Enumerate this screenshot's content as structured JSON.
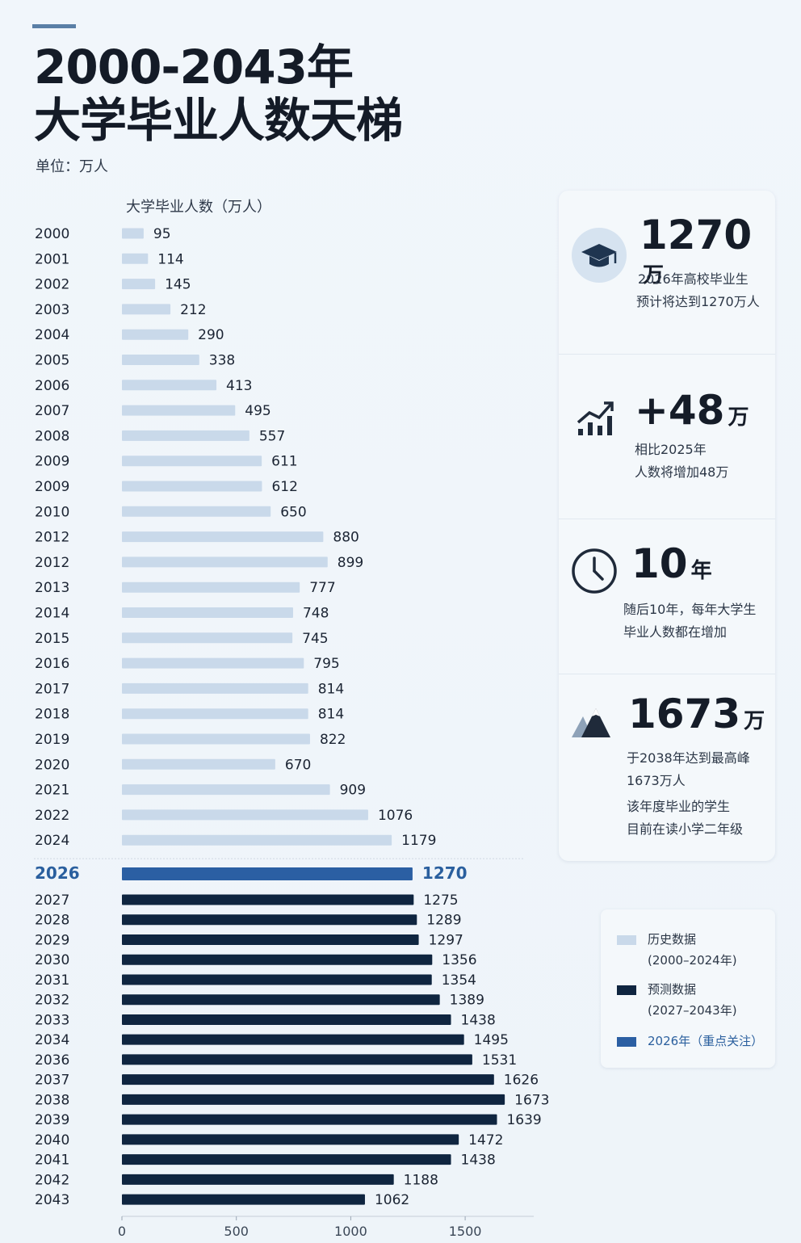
{
  "header": {
    "title_line1": "2000-2043年",
    "title_line2": "大学毕业人数天梯",
    "unit": "单位：万人"
  },
  "chart_data": {
    "type": "bar",
    "orientation": "horizontal",
    "ylabel": "大学毕业人数（万人）",
    "xlim": [
      0,
      1800
    ],
    "xticks": [
      0,
      500,
      1000,
      1500
    ],
    "categories": [
      "2000",
      "2001",
      "2002",
      "2003",
      "2004",
      "2005",
      "2006",
      "2007",
      "2008",
      "2009",
      "2009",
      "2010",
      "2012",
      "2012",
      "2013",
      "2014",
      "2015",
      "2016",
      "2017",
      "2018",
      "2019",
      "2020",
      "2021",
      "2022",
      "2024",
      "2026",
      "2027",
      "2028",
      "2029",
      "2030",
      "2031",
      "2032",
      "2033",
      "2034",
      "2036",
      "2037",
      "2038",
      "2039",
      "2040",
      "2041",
      "2042",
      "2043"
    ],
    "values": [
      95,
      114,
      145,
      212,
      290,
      338,
      413,
      495,
      557,
      611,
      612,
      650,
      880,
      899,
      777,
      748,
      745,
      795,
      814,
      814,
      822,
      670,
      909,
      1076,
      1179,
      1270,
      1275,
      1289,
      1297,
      1356,
      1354,
      1389,
      1438,
      1495,
      1531,
      1626,
      1673,
      1639,
      1472,
      1438,
      1188,
      1062
    ],
    "groups": [
      "history",
      "history",
      "history",
      "history",
      "history",
      "history",
      "history",
      "history",
      "history",
      "history",
      "history",
      "history",
      "history",
      "history",
      "history",
      "history",
      "history",
      "history",
      "history",
      "history",
      "history",
      "history",
      "history",
      "history",
      "history",
      "focus",
      "forecast",
      "forecast",
      "forecast",
      "forecast",
      "forecast",
      "forecast",
      "forecast",
      "forecast",
      "forecast",
      "forecast",
      "forecast",
      "forecast",
      "forecast",
      "forecast",
      "forecast",
      "forecast"
    ],
    "colors": {
      "history": "#c9d9ea",
      "focus": "#2b5fa3",
      "forecast": "#0f2540",
      "focus_text": "#2a5f9e"
    },
    "legend": [
      {
        "group": "history",
        "label": "历史数据",
        "sub": "(2000–2024年)"
      },
      {
        "group": "forecast",
        "label": "预测数据",
        "sub": "(2027–2043年)"
      },
      {
        "group": "focus",
        "label": "2026年（重点关注）",
        "sub": ""
      }
    ],
    "legend_position": "right"
  },
  "cards": [
    {
      "icon": "graduation-cap-icon",
      "value": "1270",
      "suffix": "万",
      "lines": [
        "2026年高校毕业生",
        "预计将达到1270万人"
      ]
    },
    {
      "icon": "trend-up-icon",
      "value": "+48",
      "suffix": "万",
      "lines": [
        "相比2025年",
        "人数将增加48万"
      ]
    },
    {
      "icon": "clock-icon",
      "value": "10",
      "suffix": "年",
      "lines": [
        "随后10年，每年大学生",
        "毕业人数都在增加"
      ]
    },
    {
      "icon": "mountain-icon",
      "value": "1673",
      "suffix": "万",
      "lines": [
        "于2038年达到最高峰",
        "1673万人"
      ],
      "lines2": [
        "该年度毕业的学生",
        "目前在读小学二年级"
      ]
    }
  ]
}
